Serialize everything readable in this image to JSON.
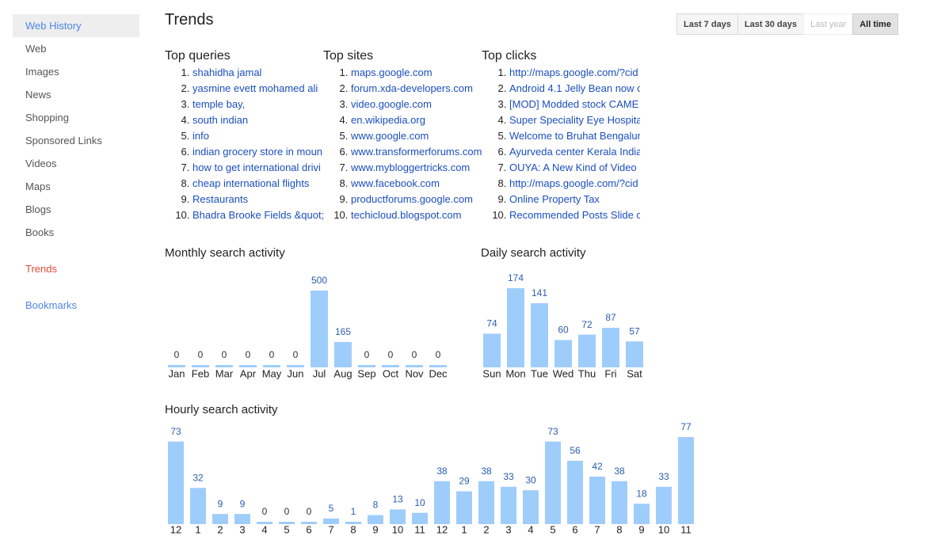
{
  "nav": {
    "items": [
      "Web History",
      "Web",
      "Images",
      "News",
      "Shopping",
      "Sponsored Links",
      "Videos",
      "Maps",
      "Blogs",
      "Books",
      "Trends",
      "Bookmarks"
    ]
  },
  "header": {
    "title": "Trends"
  },
  "range_buttons": [
    "Last 7 days",
    "Last 30 days",
    "Last year",
    "All time"
  ],
  "top_lists": [
    {
      "title": "Top queries",
      "items": [
        "shahidha jamal",
        "yasmine evett mohamed ali",
        "temple bay,",
        "south indian",
        "info",
        "indian grocery store in moun",
        "how to get international drivi",
        "cheap international flights",
        "Restaurants",
        "Bhadra Brooke Fields &quot;"
      ]
    },
    {
      "title": "Top sites",
      "items": [
        "maps.google.com",
        "forum.xda-developers.com",
        "video.google.com",
        "en.wikipedia.org",
        "www.google.com",
        "www.transformerforums.com",
        "www.mybloggertricks.com",
        "www.facebook.com",
        "productforums.google.com",
        "techicloud.blogspot.com"
      ]
    },
    {
      "title": "Top clicks",
      "items": [
        "http://maps.google.com/?cid",
        "Android 4.1 Jelly Bean now c",
        "[MOD] Modded stock CAME",
        "Super Speciality Eye Hospita",
        "Welcome to Bruhat Bengalur",
        "Ayurveda center Kerala India",
        "OUYA: A New Kind of Video",
        "http://maps.google.com/?cid",
        "Online Property Tax",
        "Recommended Posts Slide c"
      ]
    }
  ],
  "chart_data": [
    {
      "type": "bar",
      "title": "Monthly search activity",
      "categories": [
        "Jan",
        "Feb",
        "Mar",
        "Apr",
        "May",
        "Jun",
        "Jul",
        "Aug",
        "Sep",
        "Oct",
        "Nov",
        "Dec"
      ],
      "values": [
        0,
        0,
        0,
        0,
        0,
        0,
        500,
        165,
        0,
        0,
        0,
        0
      ],
      "color": "#9fcdfb"
    },
    {
      "type": "bar",
      "title": "Daily search activity",
      "categories": [
        "Sun",
        "Mon",
        "Tue",
        "Wed",
        "Thu",
        "Fri",
        "Sat"
      ],
      "values": [
        74,
        174,
        141,
        60,
        72,
        87,
        57
      ],
      "color": "#9fcdfb"
    },
    {
      "type": "bar",
      "title": "Hourly search activity",
      "categories": [
        "12",
        "1",
        "2",
        "3",
        "4",
        "5",
        "6",
        "7",
        "8",
        "9",
        "10",
        "11",
        "12",
        "1",
        "2",
        "3",
        "4",
        "5",
        "6",
        "7",
        "8",
        "9",
        "10",
        "11"
      ],
      "values": [
        73,
        32,
        9,
        9,
        0,
        0,
        0,
        5,
        1,
        8,
        13,
        10,
        38,
        29,
        38,
        33,
        30,
        73,
        56,
        42,
        38,
        18,
        33,
        77
      ],
      "color": "#9fcdfb"
    }
  ]
}
